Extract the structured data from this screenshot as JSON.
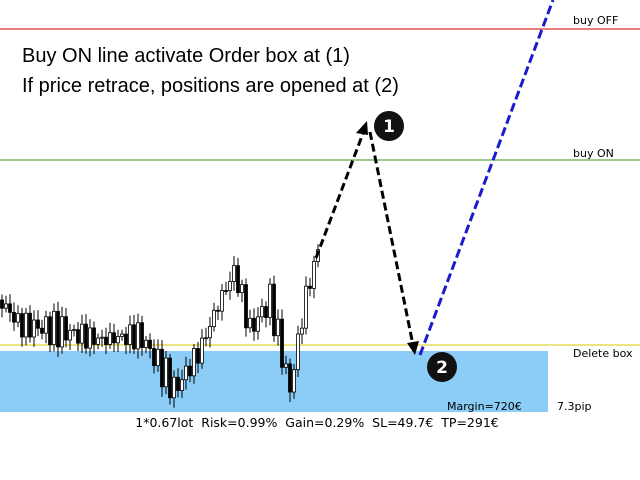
{
  "annotation": {
    "line1": "Buy ON line activate Order box at (1)",
    "line2": "If price retrace, positions are opened at (2)"
  },
  "levels": [
    {
      "label": "buy OFF"
    },
    {
      "label": "buy ON"
    },
    {
      "label": "Delete box"
    }
  ],
  "markers": [
    "1",
    "2"
  ],
  "order_box": {
    "margin": "Margin=720€",
    "size": "7.3pip"
  },
  "status": "1*0.67lot  Risk=0.99%  Gain=0.29%  SL=49.7€  TP=291€"
}
